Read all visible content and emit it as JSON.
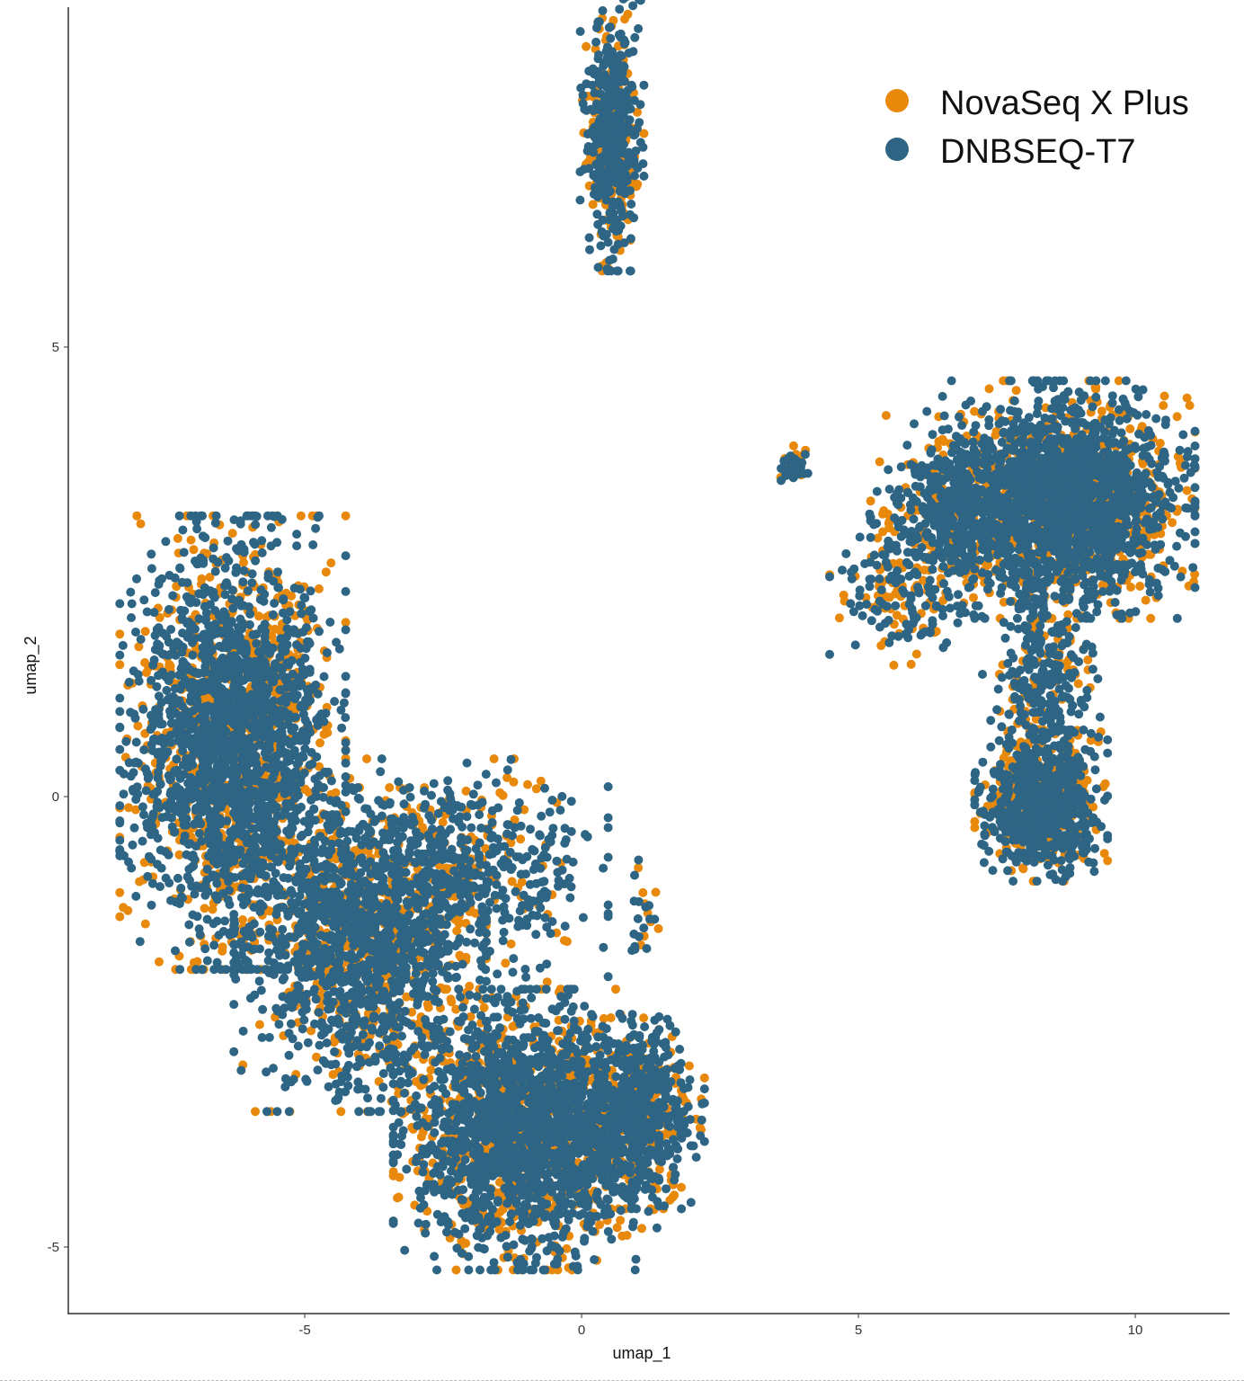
{
  "chart_data": {
    "type": "scatter",
    "title": "",
    "xlabel": "umap_1",
    "ylabel": "umap_2",
    "xlim": [
      -9.3,
      11.7
    ],
    "ylim": [
      -5.7,
      8.8
    ],
    "x_ticks": [
      -5,
      0,
      5,
      10
    ],
    "y_ticks": [
      -5,
      0,
      5
    ],
    "grid": false,
    "legend_position": "top-right inside",
    "series": [
      {
        "name": "NovaSeq X Plus",
        "color": "#E8890C"
      },
      {
        "name": "DNBSEQ-T7",
        "color": "#2E6584"
      }
    ],
    "clusters": [
      {
        "label": "left-upper lobe",
        "center": [
          -6.3,
          0.6
        ],
        "sd": [
          0.85,
          1.05
        ],
        "n": 2600
      },
      {
        "label": "left-mid band",
        "center": [
          -4.0,
          -1.7
        ],
        "sd": [
          0.95,
          0.75
        ],
        "n": 1400
      },
      {
        "label": "diagonal sparse band",
        "center": [
          -2.4,
          -0.9
        ],
        "sd": [
          1.2,
          0.55
        ],
        "n": 700
      },
      {
        "label": "left-lower lobe",
        "center": [
          -1.0,
          -3.7
        ],
        "sd": [
          1.0,
          0.65
        ],
        "n": 2300
      },
      {
        "label": "left-lower right shoulder",
        "center": [
          0.9,
          -3.5
        ],
        "sd": [
          0.55,
          0.45
        ],
        "n": 700
      },
      {
        "label": "small spike",
        "center": [
          1.1,
          -1.3
        ],
        "sd": [
          0.12,
          0.25
        ],
        "n": 25
      },
      {
        "label": "top small cluster",
        "center": [
          0.55,
          7.4
        ],
        "sd": [
          0.24,
          0.65
        ],
        "n": 550
      },
      {
        "label": "right-upper lobe",
        "center": [
          8.8,
          3.3
        ],
        "sd": [
          0.95,
          0.55
        ],
        "n": 2200
      },
      {
        "label": "right-upper left arm",
        "center": [
          6.9,
          3.2
        ],
        "sd": [
          0.7,
          0.45
        ],
        "n": 600
      },
      {
        "label": "right tail",
        "center": [
          5.8,
          2.3
        ],
        "sd": [
          0.55,
          0.35
        ],
        "n": 180
      },
      {
        "label": "right isolated knot",
        "center": [
          3.8,
          3.7
        ],
        "sd": [
          0.12,
          0.1
        ],
        "n": 40
      },
      {
        "label": "right stem",
        "center": [
          8.3,
          1.3
        ],
        "sd": [
          0.45,
          0.55
        ],
        "n": 350
      },
      {
        "label": "right-lower lobe",
        "center": [
          8.3,
          -0.1
        ],
        "sd": [
          0.5,
          0.35
        ],
        "n": 900
      }
    ],
    "orange_fraction": 0.32
  },
  "axes": {
    "x_tick_labels": [
      "-5",
      "0",
      "5",
      "10"
    ],
    "y_tick_labels": [
      "5",
      "0",
      "-5"
    ]
  },
  "legend": {
    "items": [
      {
        "label": "NovaSeq X Plus",
        "color": "#E8890C"
      },
      {
        "label": "DNBSEQ-T7",
        "color": "#2E6584"
      }
    ]
  }
}
